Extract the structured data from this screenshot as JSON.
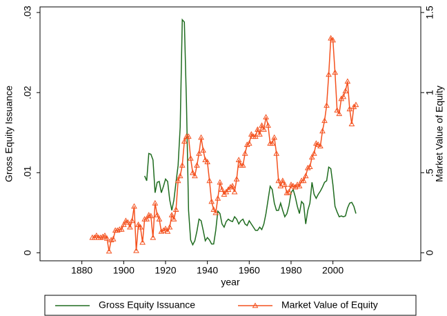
{
  "chart_data": {
    "type": "line",
    "x_label": "year",
    "y_label": "Gross Equity Issuance",
    "y2_label": "Market Value of Equity",
    "x": [
      1885,
      1886,
      1887,
      1888,
      1889,
      1890,
      1891,
      1892,
      1893,
      1894,
      1895,
      1896,
      1897,
      1898,
      1899,
      1900,
      1901,
      1902,
      1903,
      1904,
      1905,
      1906,
      1907,
      1908,
      1909,
      1910,
      1911,
      1912,
      1913,
      1914,
      1915,
      1916,
      1917,
      1918,
      1919,
      1920,
      1921,
      1922,
      1923,
      1924,
      1925,
      1926,
      1927,
      1928,
      1929,
      1930,
      1931,
      1932,
      1933,
      1934,
      1935,
      1936,
      1937,
      1938,
      1939,
      1940,
      1941,
      1942,
      1943,
      1944,
      1945,
      1946,
      1947,
      1948,
      1949,
      1950,
      1951,
      1952,
      1953,
      1954,
      1955,
      1956,
      1957,
      1958,
      1959,
      1960,
      1961,
      1962,
      1963,
      1964,
      1965,
      1966,
      1967,
      1968,
      1969,
      1970,
      1971,
      1972,
      1973,
      1974,
      1975,
      1976,
      1977,
      1978,
      1979,
      1980,
      1981,
      1982,
      1983,
      1984,
      1985,
      1986,
      1987,
      1988,
      1989,
      1990,
      1991,
      1992,
      1993,
      1994,
      1995,
      1996,
      1997,
      1998,
      1999,
      2000,
      2001,
      2002,
      2003,
      2004,
      2005,
      2006,
      2007,
      2008,
      2009,
      2010,
      2011
    ],
    "series": [
      {
        "name": "Gross Equity Issuance",
        "color": "#1e6b1e",
        "axis": "y",
        "marker": "none",
        "values": [
          null,
          null,
          null,
          null,
          null,
          null,
          null,
          null,
          null,
          null,
          null,
          null,
          null,
          null,
          null,
          null,
          null,
          null,
          null,
          null,
          null,
          null,
          null,
          null,
          null,
          0.0096,
          0.009,
          0.0124,
          0.0123,
          0.0116,
          0.0075,
          0.0088,
          0.0089,
          0.0075,
          0.0083,
          0.0092,
          0.0089,
          0.0066,
          0.0053,
          0.0066,
          0.0088,
          0.0109,
          0.0157,
          0.0291,
          0.0288,
          0.0187,
          0.0053,
          0.0016,
          0.001,
          0.0015,
          0.0027,
          0.0042,
          0.004,
          0.0028,
          0.0015,
          0.0019,
          0.0016,
          0.0011,
          0.0011,
          0.0028,
          0.0052,
          0.0049,
          0.0036,
          0.0032,
          0.0039,
          0.0042,
          0.004,
          0.0039,
          0.0045,
          0.0042,
          0.0036,
          0.004,
          0.0042,
          0.0036,
          0.0034,
          0.004,
          0.0036,
          0.0032,
          0.0028,
          0.0028,
          0.0032,
          0.0029,
          0.0036,
          0.0049,
          0.0066,
          0.0083,
          0.0079,
          0.0062,
          0.0053,
          0.0053,
          0.0062,
          0.0053,
          0.0045,
          0.0049,
          0.0059,
          0.0075,
          0.0079,
          0.007,
          0.0058,
          0.0049,
          0.0064,
          0.0061,
          0.0036,
          0.0053,
          0.0062,
          0.0088,
          0.0073,
          0.0068,
          0.0073,
          0.0077,
          0.0082,
          0.0088,
          0.009,
          0.0107,
          0.0105,
          0.0085,
          0.0058,
          0.0051,
          0.0045,
          0.0046,
          0.0045,
          0.0046,
          0.0056,
          0.0062,
          0.0063,
          0.0058,
          0.0049
        ]
      },
      {
        "name": "Market Value of Equity",
        "color": "#f4511e",
        "axis": "y2",
        "marker": "triangle",
        "values": [
          0.095,
          0.095,
          0.107,
          0.095,
          0.095,
          0.1,
          0.107,
          0.09,
          0.01,
          0.08,
          0.086,
          0.14,
          0.14,
          0.146,
          0.146,
          0.176,
          0.2,
          0.19,
          0.16,
          0.2,
          0.29,
          0.013,
          0.176,
          0.16,
          0.065,
          0.21,
          0.21,
          0.236,
          0.23,
          0.095,
          0.31,
          0.236,
          0.21,
          0.133,
          0.14,
          0.15,
          0.133,
          0.16,
          0.236,
          0.21,
          0.27,
          0.45,
          0.48,
          0.546,
          0.696,
          0.726,
          0.726,
          0.59,
          0.5,
          0.48,
          0.546,
          0.62,
          0.72,
          0.64,
          0.58,
          0.567,
          0.45,
          0.32,
          0.27,
          0.25,
          0.34,
          0.44,
          0.395,
          0.365,
          0.38,
          0.395,
          0.41,
          0.417,
          0.38,
          0.46,
          0.58,
          0.546,
          0.546,
          0.62,
          0.675,
          0.683,
          0.74,
          0.726,
          0.726,
          0.77,
          0.74,
          0.795,
          0.77,
          0.847,
          0.795,
          0.683,
          0.683,
          0.72,
          0.62,
          0.45,
          0.417,
          0.45,
          0.425,
          0.374,
          0.38,
          0.425,
          0.417,
          0.41,
          0.425,
          0.417,
          0.45,
          0.45,
          0.48,
          0.53,
          0.537,
          0.597,
          0.62,
          0.683,
          0.675,
          0.666,
          0.76,
          0.825,
          0.92,
          1.113,
          1.34,
          1.328,
          1.126,
          0.89,
          0.868,
          0.962,
          0.975,
          1.01,
          1.07,
          0.898,
          0.804,
          0.911,
          0.924
        ]
      }
    ],
    "xlim": [
      1860,
      2042
    ],
    "xticks": [
      1880,
      1900,
      1920,
      1940,
      1960,
      1980,
      2000
    ],
    "ylim": [
      -0.001,
      0.0307
    ],
    "yticks": [
      {
        "value": 0,
        "label": "0"
      },
      {
        "value": 0.01,
        "label": ".01"
      },
      {
        "value": 0.02,
        "label": ".02"
      },
      {
        "value": 0.03,
        "label": ".03"
      }
    ],
    "y2lim": [
      -0.05,
      1.535
    ],
    "y2ticks": [
      0,
      {
        "value": 0.5,
        "label": ".5"
      },
      1,
      1.5
    ],
    "legend": "bottom",
    "grid": false
  }
}
